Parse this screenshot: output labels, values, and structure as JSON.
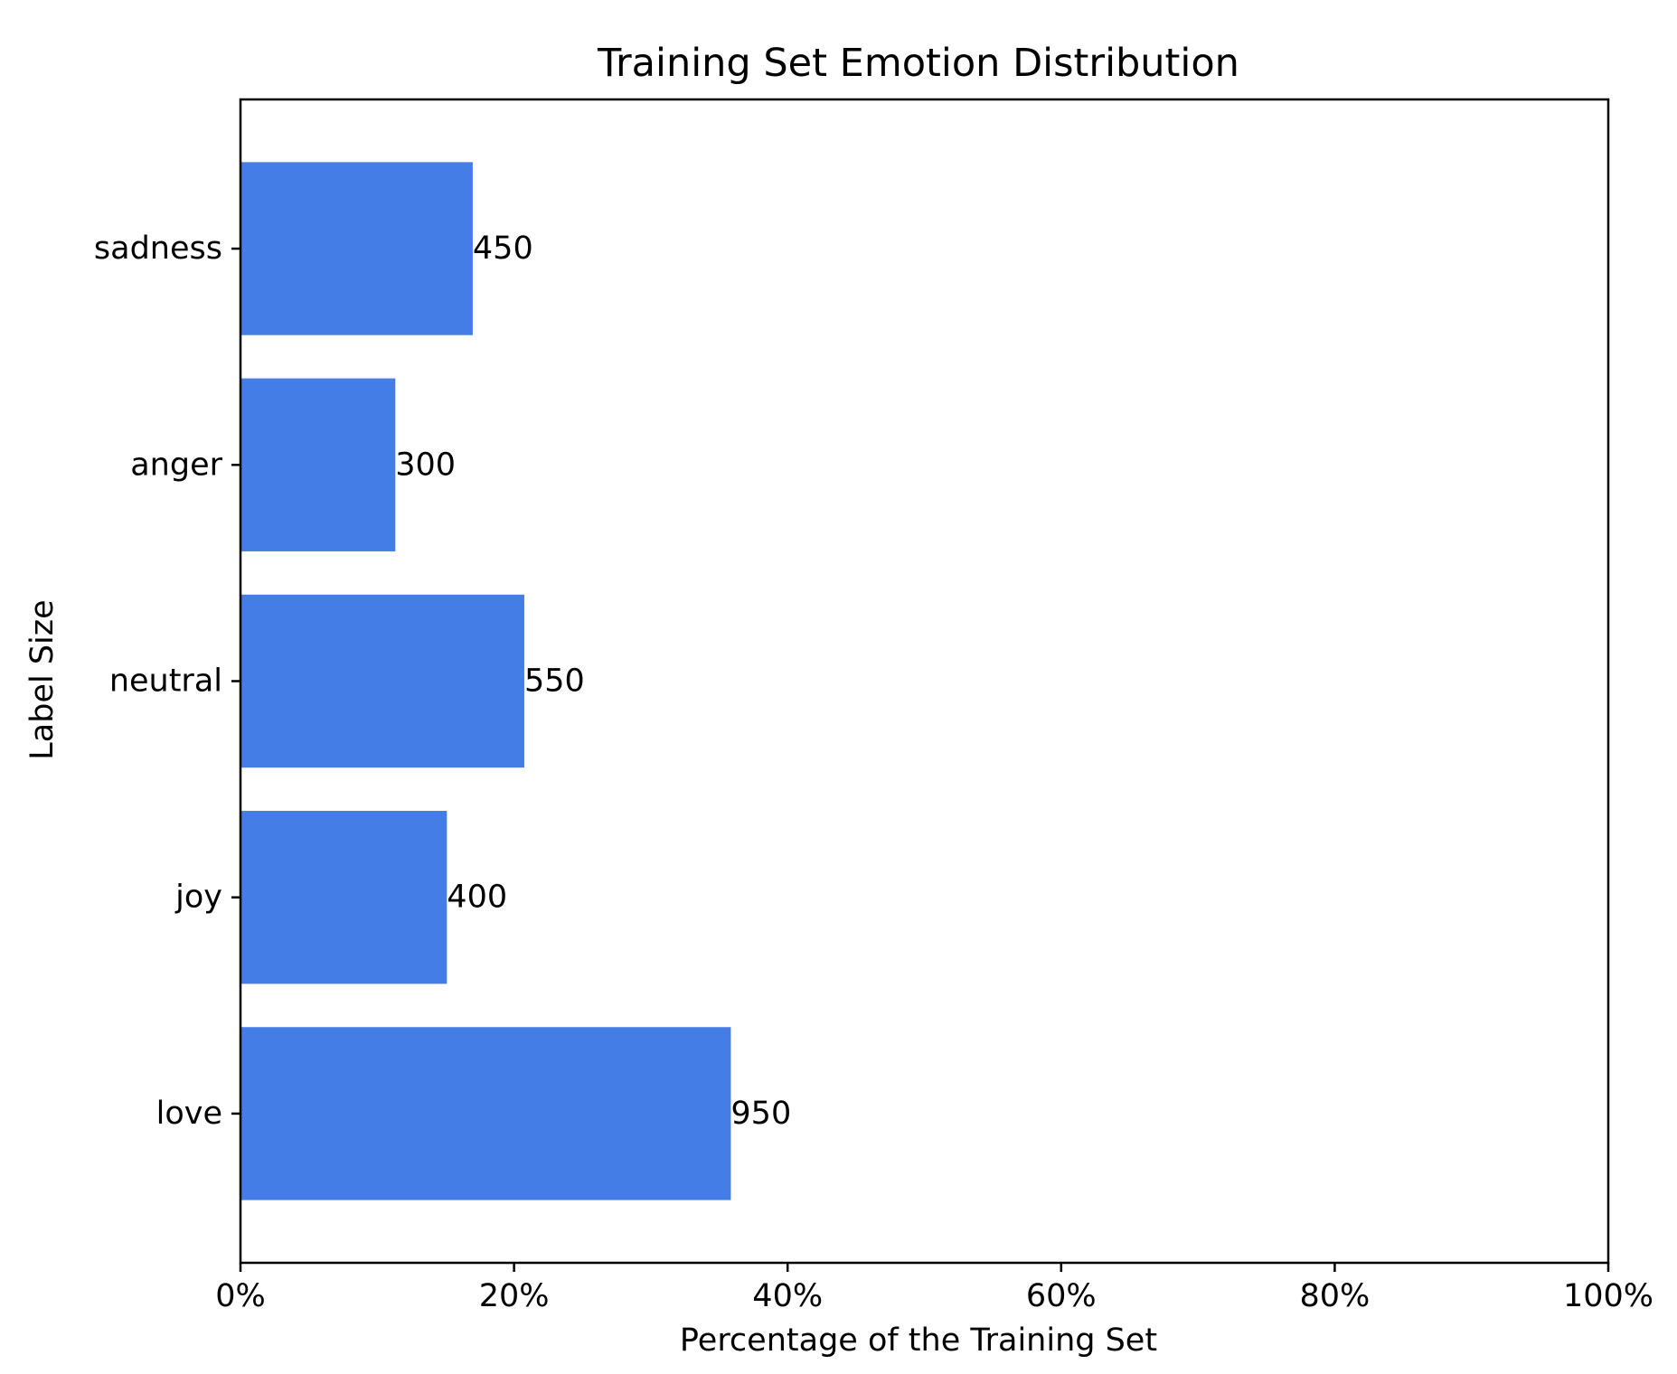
{
  "chart_data": {
    "type": "bar",
    "orientation": "horizontal",
    "title": "Training Set Emotion Distribution",
    "xlabel": "Percentage of the Training Set",
    "ylabel": "Label Size",
    "categories": [
      "sadness",
      "anger",
      "neutral",
      "joy",
      "love"
    ],
    "values": [
      450,
      300,
      550,
      400,
      950
    ],
    "percentages": [
      16.98,
      11.32,
      20.75,
      15.09,
      35.85
    ],
    "data_labels": [
      "450",
      "300",
      "550",
      "400",
      "950"
    ],
    "xlim": [
      0,
      100
    ],
    "xticks": [
      0,
      20,
      40,
      60,
      80,
      100
    ],
    "xtick_labels": [
      "0%",
      "20%",
      "40%",
      "60%",
      "80%",
      "100%"
    ],
    "grid": false,
    "colors": {
      "bar": "#457de6"
    }
  }
}
